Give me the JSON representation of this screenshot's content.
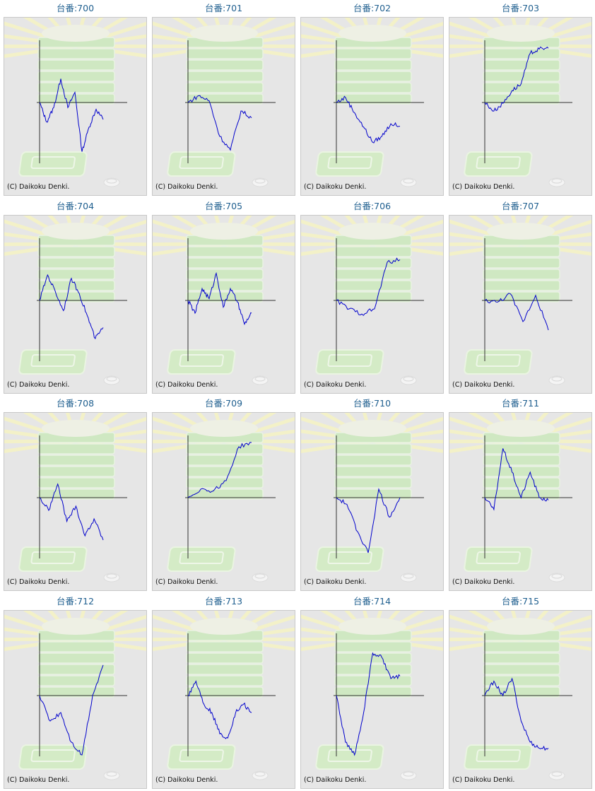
{
  "label_prefix": "台番:",
  "copyright": "(C) Daikoku Denki.",
  "colors": {
    "line": "#0000cc",
    "axis": "#333333",
    "panel_bg": "#e6e6e6",
    "label": "#1f5f8f"
  },
  "background_icons": [
    "sunburst-icon",
    "pachislot-stack-icon",
    "tray-icon",
    "coin-icon"
  ],
  "chart_data": [
    {
      "type": "line",
      "machine": "700",
      "y": [
        0,
        -23,
        -6,
        28,
        -6,
        12,
        -58,
        -29,
        -8,
        -20
      ]
    },
    {
      "type": "line",
      "machine": "701",
      "y": [
        0,
        8,
        2,
        -40,
        -56,
        -10,
        -18
      ]
    },
    {
      "type": "line",
      "machine": "702",
      "y": [
        0,
        6,
        -12,
        -29,
        -47,
        -40,
        -25,
        -28
      ]
    },
    {
      "type": "line",
      "machine": "703",
      "y": [
        0,
        -10,
        -1,
        14,
        22,
        58,
        63,
        64
      ]
    },
    {
      "type": "line",
      "machine": "704",
      "y": [
        0,
        30,
        10,
        -12,
        26,
        8,
        -18,
        -45,
        -32
      ]
    },
    {
      "type": "line",
      "machine": "705",
      "y": [
        0,
        -15,
        14,
        2,
        32,
        -8,
        14,
        -2,
        -28,
        -15
      ]
    },
    {
      "type": "line",
      "machine": "706",
      "y": [
        0,
        -10,
        -16,
        -10,
        45,
        48
      ]
    },
    {
      "type": "line",
      "machine": "707",
      "y": [
        0,
        -2,
        8,
        -25,
        6,
        -35
      ]
    },
    {
      "type": "line",
      "machine": "708",
      "y": [
        0,
        -15,
        16,
        -28,
        -10,
        -45,
        -25,
        -50
      ]
    },
    {
      "type": "line",
      "machine": "709",
      "y": [
        0,
        10,
        8,
        20,
        60,
        65
      ]
    },
    {
      "type": "line",
      "machine": "710",
      "y": [
        0,
        -8,
        -40,
        -65,
        10,
        -23,
        0
      ]
    },
    {
      "type": "line",
      "machine": "711",
      "y": [
        0,
        -14,
        58,
        30,
        0,
        30,
        0,
        -3
      ]
    },
    {
      "type": "line",
      "machine": "712",
      "y": [
        0,
        -30,
        -20,
        -55,
        -70,
        0,
        36
      ]
    },
    {
      "type": "line",
      "machine": "713",
      "y": [
        0,
        17,
        -10,
        -20,
        -45,
        -50,
        -20,
        -10,
        -20
      ]
    },
    {
      "type": "line",
      "machine": "714",
      "y": [
        0,
        -55,
        -70,
        -20,
        50,
        45,
        20,
        23
      ]
    },
    {
      "type": "line",
      "machine": "715",
      "y": [
        0,
        17,
        0,
        20,
        -30,
        -55,
        -62,
        -62
      ]
    }
  ]
}
